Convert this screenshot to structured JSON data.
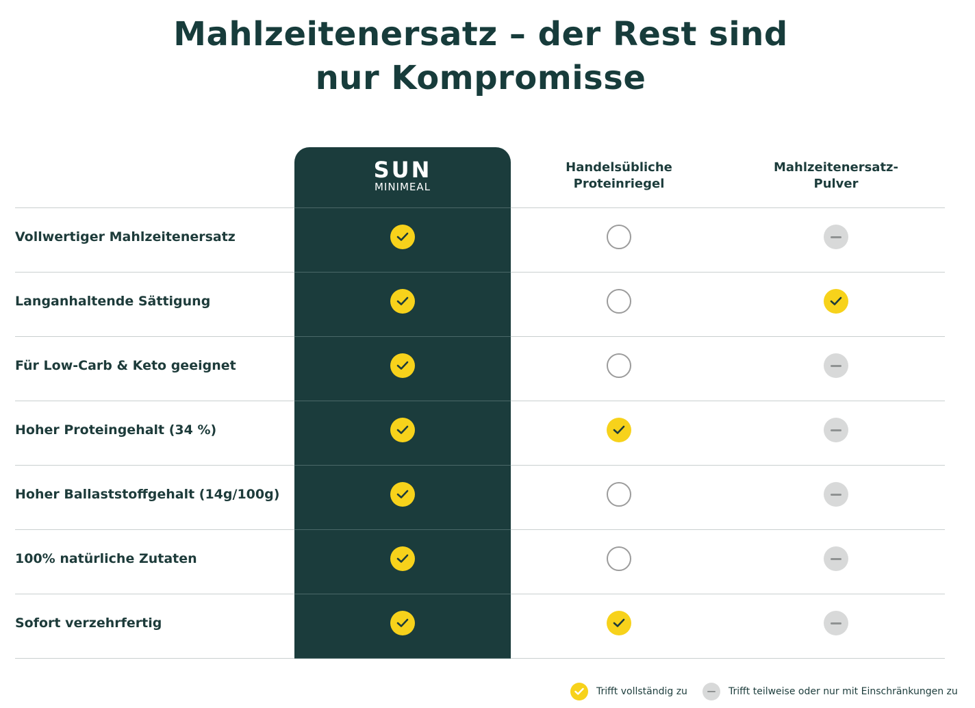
{
  "title": {
    "line1": "Mahlzeitenersatz – der Rest sind",
    "line2": "nur Kompromisse"
  },
  "brand": {
    "main": "SUN",
    "sub": "MINIMEAL"
  },
  "columns": [
    {
      "key": "sun",
      "label_lines": []
    },
    {
      "key": "riegel",
      "label_lines": [
        "Handelsübliche",
        "Proteinriegel"
      ]
    },
    {
      "key": "pulver",
      "label_lines": [
        "Mahlzeitenersatz-",
        "Pulver"
      ]
    }
  ],
  "rows": [
    {
      "label": "Vollwertiger Mahlzeitenersatz",
      "values": [
        "full",
        "none",
        "partial"
      ]
    },
    {
      "label": "Langanhaltende Sättigung",
      "values": [
        "full",
        "none",
        "full"
      ]
    },
    {
      "label": "Für Low-Carb & Keto geeignet",
      "values": [
        "full",
        "none",
        "partial"
      ]
    },
    {
      "label": "Hoher Proteingehalt (34 %)",
      "values": [
        "full",
        "full",
        "partial"
      ]
    },
    {
      "label": "Hoher Ballaststoffgehalt (14g/100g)",
      "values": [
        "full",
        "none",
        "partial"
      ]
    },
    {
      "label": "100% natürliche Zutaten",
      "values": [
        "full",
        "none",
        "partial"
      ]
    },
    {
      "label": "Sofort verzehrfertig",
      "values": [
        "full",
        "full",
        "partial"
      ]
    }
  ],
  "legend": {
    "full": "Trifft vollständig zu",
    "partial": "Trifft teilweise oder nur mit Einschränkungen zu"
  },
  "icons": {
    "full": "check-circle-icon",
    "none": "empty-circle-icon",
    "partial": "minus-circle-icon"
  },
  "colors": {
    "brand_panel": "#1b3c3c",
    "check_yellow": "#f7d21b",
    "partial_grey": "#d8d9d9",
    "text_dark": "#173c3b"
  }
}
